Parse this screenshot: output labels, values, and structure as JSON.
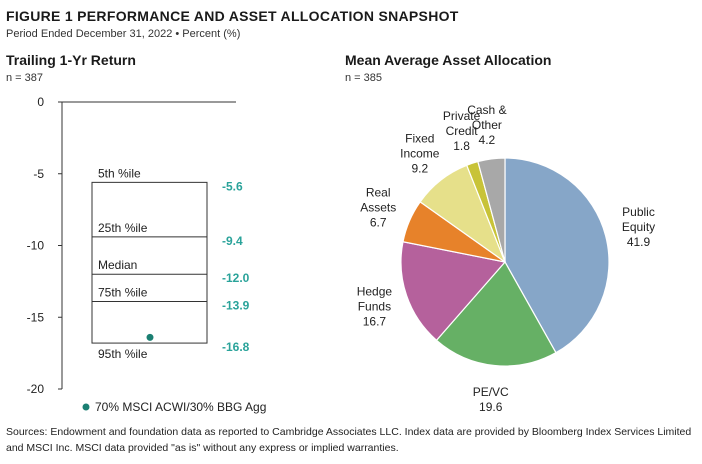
{
  "figure": {
    "title": "FIGURE 1   PERFORMANCE AND ASSET ALLOCATION SNAPSHOT",
    "subtitle": "Period Ended December 31, 2022 • Percent (%)"
  },
  "chart_data": [
    {
      "type": "box",
      "title": "Trailing 1-Yr Return",
      "n_label": "n = 387",
      "ylim": [
        -20,
        0
      ],
      "yticks": [
        0,
        -5,
        -10,
        -15,
        -20
      ],
      "percentiles": [
        {
          "label": "5th %ile",
          "value": -5.6,
          "value_label": "-5.6"
        },
        {
          "label": "25th %ile",
          "value": -9.4,
          "value_label": "-9.4"
        },
        {
          "label": "Median",
          "value": -12.0,
          "value_label": "-12.0"
        },
        {
          "label": "75th %ile",
          "value": -13.9,
          "value_label": "-13.9"
        },
        {
          "label": "95th %ile",
          "value": -16.8,
          "value_label": "-16.8"
        }
      ],
      "benchmark": {
        "label": "70% MSCI ACWI/30% BBG Agg",
        "value": -16.4,
        "color": "#1a7f72"
      },
      "value_color": "#2aa39a"
    },
    {
      "type": "pie",
      "title": "Mean Average Asset Allocation",
      "n_label": "n = 385",
      "slices": [
        {
          "lines": [
            "Public",
            "Equity"
          ],
          "value": 41.9,
          "value_label": "41.9",
          "color": "#86a6c8"
        },
        {
          "lines": [
            "PE/VC"
          ],
          "value": 19.6,
          "value_label": "19.6",
          "color": "#66b065"
        },
        {
          "lines": [
            "Hedge",
            "Funds"
          ],
          "value": 16.7,
          "value_label": "16.7",
          "color": "#b5619c"
        },
        {
          "lines": [
            "Real",
            "Assets"
          ],
          "value": 6.7,
          "value_label": "6.7",
          "color": "#e7822a"
        },
        {
          "lines": [
            "Fixed",
            "Income"
          ],
          "value": 9.2,
          "value_label": "9.2",
          "color": "#e6e08a"
        },
        {
          "lines": [
            "Private",
            "Credit"
          ],
          "value": 1.8,
          "value_label": "1.8",
          "color": "#c8c338"
        },
        {
          "lines": [
            "Cash &",
            "Other"
          ],
          "value": 4.2,
          "value_label": "4.2",
          "color": "#a8a8a8"
        }
      ]
    }
  ],
  "source": "Sources: Endowment and foundation data as reported to Cambridge Associates LLC. Index data are provided by Bloomberg Index Services Limited and MSCI Inc. MSCI data provided \"as is\" without any express or implied warranties."
}
